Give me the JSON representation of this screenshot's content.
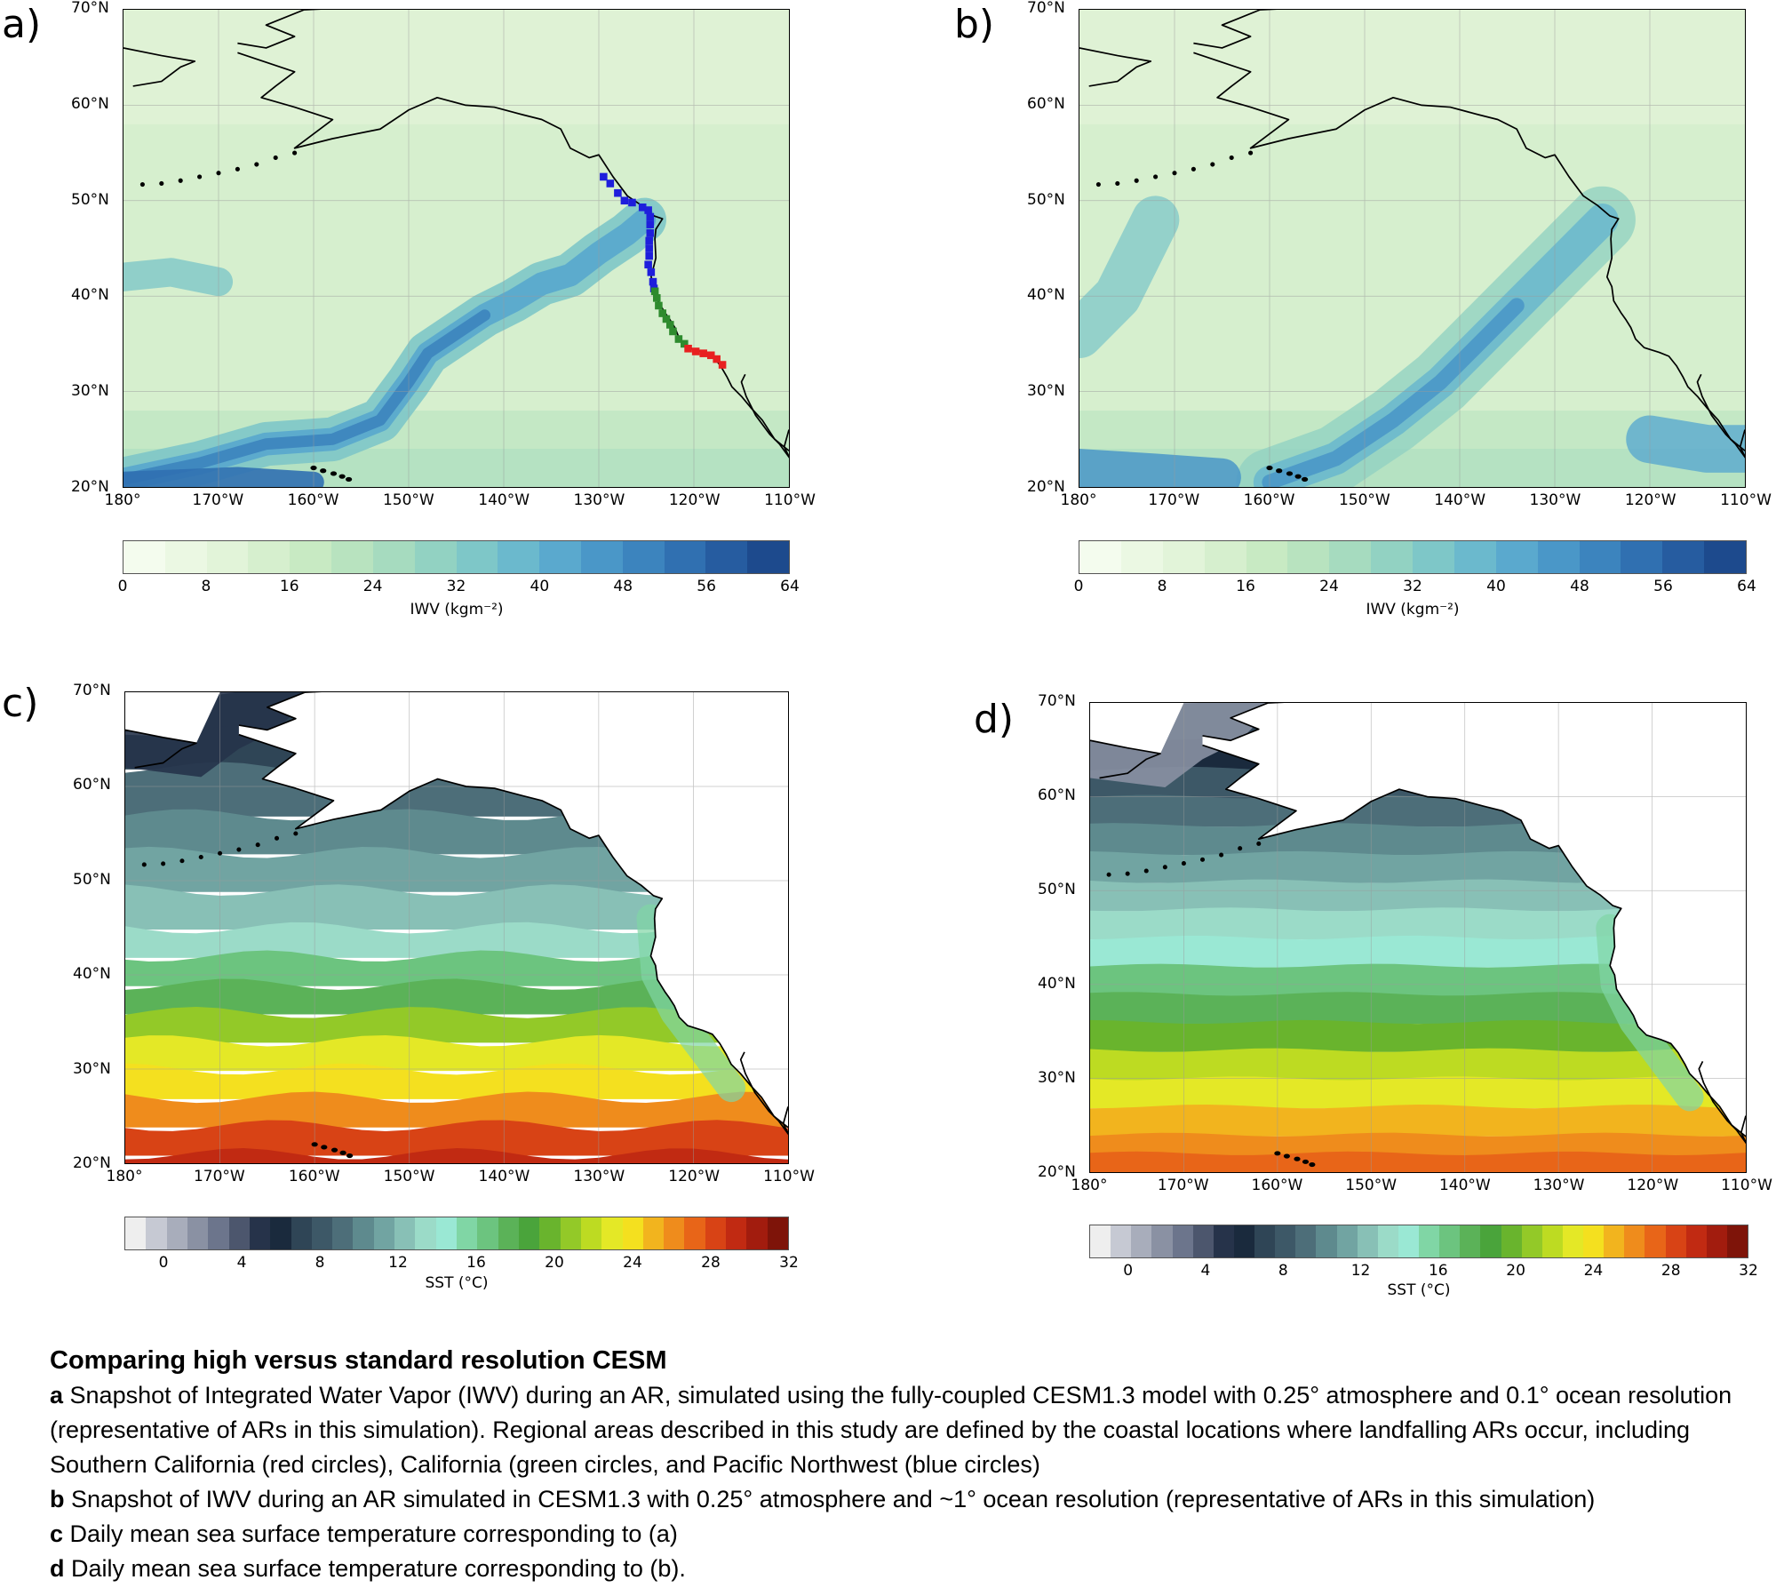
{
  "panels": [
    {
      "letter": "a)",
      "type": "iwv",
      "variant": "high",
      "lat_labels": [
        "70°N",
        "60°N",
        "50°N",
        "40°N",
        "30°N",
        "20°N"
      ],
      "lon_labels": [
        "180°",
        "170°W",
        "160°W",
        "150°W",
        "140°W",
        "130°W",
        "120°W",
        "110°W"
      ],
      "colorbar_ticks": [
        "0",
        "8",
        "16",
        "24",
        "32",
        "40",
        "48",
        "56",
        "64"
      ],
      "colorbar_label": "IWV (kgm⁻²)"
    },
    {
      "letter": "b)",
      "type": "iwv",
      "variant": "std",
      "lat_labels": [
        "70°N",
        "60°N",
        "50°N",
        "40°N",
        "30°N",
        "20°N"
      ],
      "lon_labels": [
        "180°",
        "170°W",
        "160°W",
        "150°W",
        "140°W",
        "130°W",
        "120°W",
        "110°W"
      ],
      "colorbar_ticks": [
        "0",
        "8",
        "16",
        "24",
        "32",
        "40",
        "48",
        "56",
        "64"
      ],
      "colorbar_label": "IWV (kgm⁻²)"
    },
    {
      "letter": "c)",
      "type": "sst",
      "variant": "high",
      "lat_labels": [
        "70°N",
        "60°N",
        "50°N",
        "40°N",
        "30°N",
        "20°N"
      ],
      "lon_labels": [
        "180°",
        "170°W",
        "160°W",
        "150°W",
        "140°W",
        "130°W",
        "120°W",
        "110°W"
      ],
      "colorbar_ticks": [
        "0",
        "4",
        "8",
        "12",
        "16",
        "20",
        "24",
        "28",
        "32"
      ],
      "colorbar_label": "SST (°C)"
    },
    {
      "letter": "d)",
      "type": "sst",
      "variant": "std",
      "lat_labels": [
        "70°N",
        "60°N",
        "50°N",
        "40°N",
        "30°N",
        "20°N"
      ],
      "lon_labels": [
        "180°",
        "170°W",
        "160°W",
        "150°W",
        "140°W",
        "130°W",
        "120°W",
        "110°W"
      ],
      "colorbar_ticks": [
        "0",
        "4",
        "8",
        "12",
        "16",
        "20",
        "24",
        "28",
        "32"
      ],
      "colorbar_label": "SST (°C)"
    }
  ],
  "colors": {
    "iwv": [
      "#f4fcee",
      "#ebf8e3",
      "#e2f4d9",
      "#d6efce",
      "#c8eac3",
      "#b8e3bf",
      "#a6dbbf",
      "#92d2c2",
      "#7ec7c8",
      "#6bb9cd",
      "#5aa9ce",
      "#4a97c8",
      "#3c84be",
      "#3070b1",
      "#265ca0",
      "#1d4a8d"
    ],
    "sst": [
      "#eeeeee",
      "#c6c9d3",
      "#a8adbb",
      "#8a91a3",
      "#6c758c",
      "#4c566d",
      "#26334a",
      "#1a2a3d",
      "#2f4556",
      "#3d5867",
      "#4d6e79",
      "#5e8a8e",
      "#71a4a2",
      "#88c0b6",
      "#9bdbc8",
      "#9ae8d4",
      "#80d6a5",
      "#6cc47f",
      "#5bb258",
      "#4aa43b",
      "#69b42d",
      "#93c928",
      "#bddb22",
      "#e4e826",
      "#f4e01f",
      "#f2b41e",
      "#ef8c1c",
      "#e86518",
      "#d84315",
      "#c12a12",
      "#a21c0e",
      "#7e1409"
    ],
    "routes": {
      "pacific_northwest": "#1e1edc",
      "california": "#2e8b2e",
      "southern_california": "#e82020"
    }
  },
  "caption": {
    "title": "Comparing high versus standard resolution CESM",
    "items": [
      {
        "key": "a",
        "text": " Snapshot of Integrated Water Vapor (IWV) during an AR, simulated using the fully-coupled CESM1.3 model with 0.25° atmosphere and 0.1° ocean resolution (representative of ARs in this simulation). Regional areas described in this study are defined by the coastal locations where landfalling ARs occur, including Southern California (red circles), California (green circles, and Pacific Northwest (blue circles)"
      },
      {
        "key": "b",
        "text": " Snapshot of IWV during an AR simulated in CESM1.3 with 0.25° atmosphere and ~1° ocean resolution (representative of ARs in this simulation)"
      },
      {
        "key": "c",
        "text": " Daily mean sea surface temperature corresponding to (a)"
      },
      {
        "key": "d",
        "text": " Daily mean sea surface temperature corresponding to (b)."
      }
    ]
  }
}
